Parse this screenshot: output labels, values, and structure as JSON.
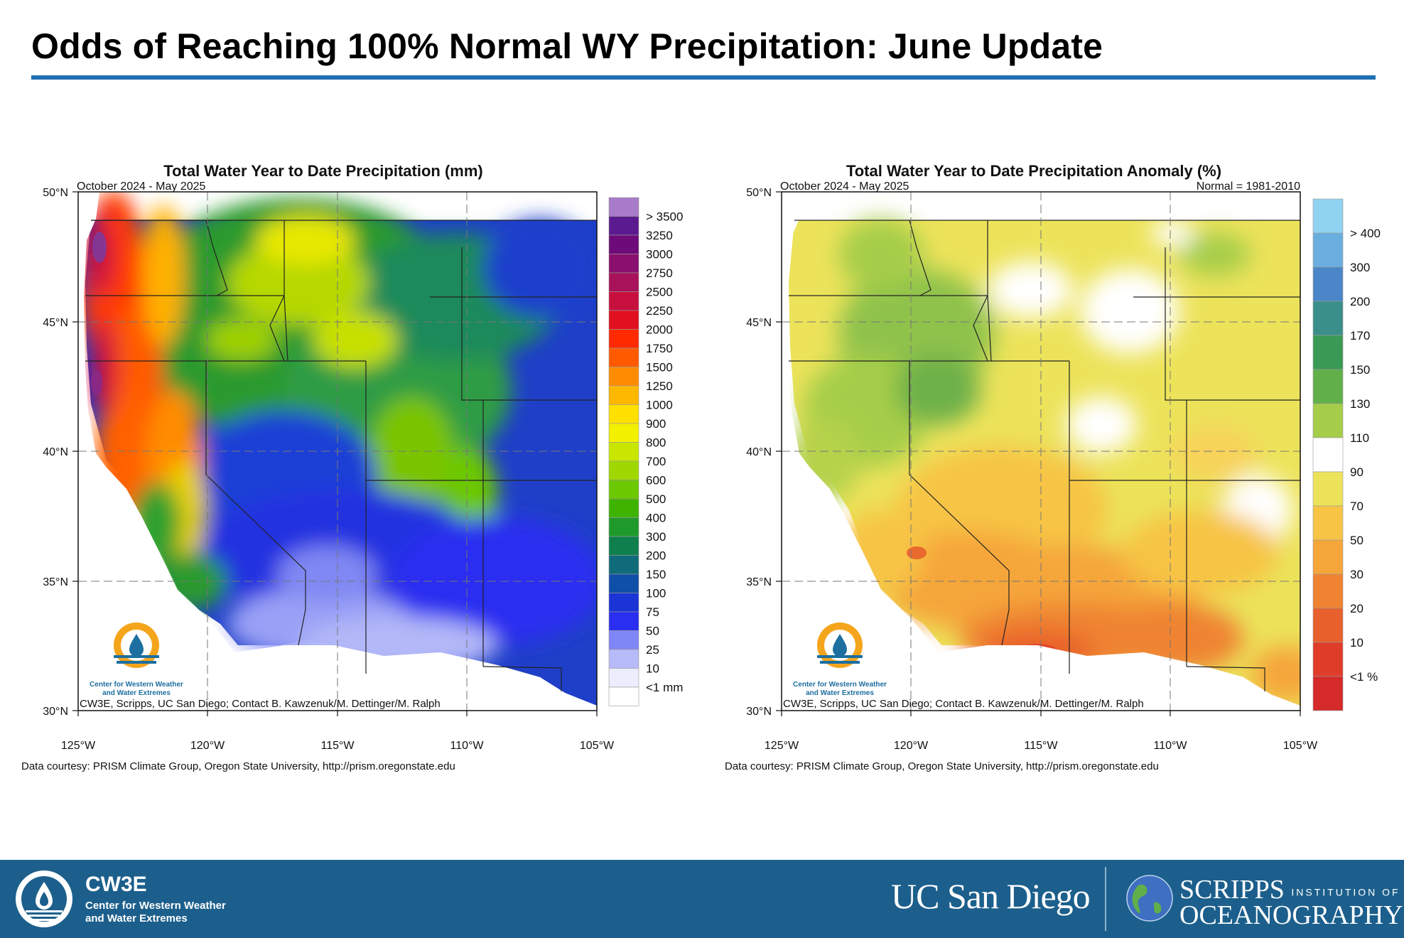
{
  "slide": {
    "title": "Odds of Reaching 100% Normal WY Precipitation: June Update"
  },
  "left_map": {
    "title": "Total Water Year to Date Precipitation (mm)",
    "period": "October 2024 - May 2025",
    "lat_labels": [
      "50°N",
      "45°N",
      "40°N",
      "35°N",
      "30°N"
    ],
    "lon_labels": [
      "125°W",
      "120°W",
      "115°W",
      "110°W",
      "105°W"
    ],
    "legend_labels": [
      "> 3500",
      "3250",
      "3000",
      "2750",
      "2500",
      "2250",
      "2000",
      "1750",
      "1500",
      "1250",
      "1000",
      "900",
      "800",
      "700",
      "600",
      "500",
      "400",
      "300",
      "200",
      "150",
      "100",
      "75",
      "50",
      "25",
      "10",
      "<1 mm"
    ],
    "legend_colors": [
      "#a77bc9",
      "#5b1a8f",
      "#6e0a7a",
      "#8a0f6e",
      "#a8125a",
      "#c8103f",
      "#e01020",
      "#ff2a00",
      "#ff5a00",
      "#ff8c00",
      "#ffb800",
      "#ffe000",
      "#f3f000",
      "#c8e600",
      "#9fd800",
      "#6cc800",
      "#3fb400",
      "#1e9a2a",
      "#0f7f4d",
      "#0f6b7a",
      "#0f4fa8",
      "#1a34d6",
      "#2a2ef0",
      "#7f86f5",
      "#b6baf8",
      "#ecedfd",
      "#ffffff"
    ],
    "credit": "CW3E, Scripps, UC San Diego; Contact B. Kawzenuk/M. Dettinger/M. Ralph",
    "logo_text": [
      "Center for Western Weather",
      "and Water Extremes"
    ],
    "data_source": "Data courtesy: PRISM Climate Group, Oregon State University, http://prism.oregonstate.edu"
  },
  "right_map": {
    "title": "Total Water Year to Date Precipitation Anomaly (%)",
    "period": "October 2024 - May 2025",
    "normal": "Normal = 1981-2010",
    "lat_labels": [
      "50°N",
      "45°N",
      "40°N",
      "35°N",
      "30°N"
    ],
    "lon_labels": [
      "125°W",
      "120°W",
      "115°W",
      "110°W",
      "105°W"
    ],
    "legend_labels": [
      "> 400",
      "300",
      "200",
      "170",
      "150",
      "130",
      "110",
      "90",
      "70",
      "50",
      "30",
      "20",
      "10",
      "<1 %"
    ],
    "legend_colors": [
      "#8fd3f0",
      "#6aaee0",
      "#4a86c8",
      "#3a8f8a",
      "#3a9a55",
      "#62b04a",
      "#a6cd4a",
      "#ffffff",
      "#ece35a",
      "#f7c445",
      "#f5a63a",
      "#ef8332",
      "#e8602c",
      "#e03c2a",
      "#d42a2a"
    ],
    "credit": "CW3E, Scripps, UC San Diego; Contact B. Kawzenuk/M. Dettinger/M. Ralph",
    "logo_text": [
      "Center for Western Weather",
      "and Water Extremes"
    ],
    "data_source": "Data courtesy: PRISM Climate Group, Oregon State University, http://prism.oregonstate.edu"
  },
  "footer": {
    "brand": "CW3E",
    "subtitle_1": "Center for Western Weather",
    "subtitle_2": "and Water Extremes",
    "ucsd": "UC San Diego",
    "scripps_1": "SCRIPPS",
    "scripps_institution": "INSTITUTION OF",
    "scripps_2": "OCEANOGRAPHY"
  }
}
